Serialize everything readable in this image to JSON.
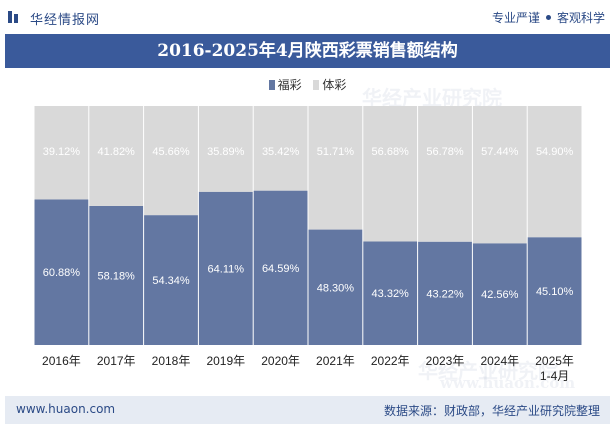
{
  "header": {
    "brand": "华经情报网",
    "slogan_left": "专业严谨",
    "slogan_right": "客观科学",
    "logo_icon": "bar-chart-logo-icon"
  },
  "title": "2016-2025年4月陕西彩票销售额结构",
  "watermarks": {
    "cn": "华经产业研究院",
    "en": "www.huaon.com"
  },
  "footer": {
    "url": "www.huaon.com",
    "source": "数据来源：财政部，华经产业研究院整理"
  },
  "colors": {
    "fucai": "#6377a2",
    "ticai": "#d9d9d9",
    "title_bg": "#3a5a9b",
    "brand": "#2b4a86"
  },
  "chart_data": {
    "type": "bar",
    "stacked": true,
    "percent": true,
    "categories": [
      "2016年",
      "2017年",
      "2018年",
      "2019年",
      "2020年",
      "2021年",
      "2022年",
      "2023年",
      "2024年",
      "2025年\n1-4月"
    ],
    "series": [
      {
        "name": "福彩",
        "values": [
          60.88,
          58.18,
          54.34,
          64.11,
          64.59,
          48.3,
          43.32,
          43.22,
          42.56,
          45.1
        ]
      },
      {
        "name": "体彩",
        "values": [
          39.12,
          41.82,
          45.66,
          35.89,
          35.42,
          51.71,
          56.68,
          56.78,
          57.44,
          54.9
        ]
      }
    ],
    "ylim": [
      0,
      100
    ],
    "legend": "top-center",
    "grid": false,
    "data_labels": true
  }
}
